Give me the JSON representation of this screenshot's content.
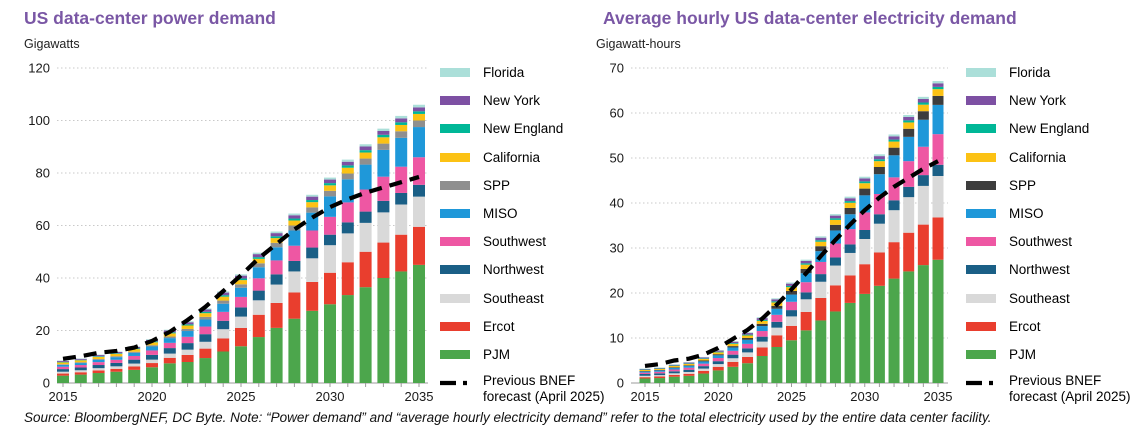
{
  "page": {
    "source_note": "Source: BloombergNEF, DC Byte. Note: “Power demand” and “average hourly electricity demand” refer to the total electricity used by the entire data center facility."
  },
  "styles": {
    "title_color": "#7a57a5",
    "axis_text_color": "#1a1a1a",
    "grid_color": "#c9c9c9",
    "baseline_color": "#9b9b9b",
    "forecast_color": "#000000"
  },
  "chart_data": [
    {
      "type": "bar",
      "stacked": true,
      "title": "US data-center power demand",
      "unit_label": "Gigawatts",
      "ylabel": "Gigawatts",
      "ylim": [
        0,
        120
      ],
      "ystep": 20,
      "grid": "dotted horizontal",
      "legend_position": "right",
      "years": [
        2015,
        2016,
        2017,
        2018,
        2019,
        2020,
        2021,
        2022,
        2023,
        2024,
        2025,
        2026,
        2027,
        2028,
        2029,
        2030,
        2031,
        2032,
        2033,
        2034,
        2035
      ],
      "xtick_labels": [
        2015,
        2020,
        2025,
        2030,
        2035
      ],
      "stack_note": "series listed top-of-stack first (legend order); PJM is bottom of stack; values are estimates read from chart",
      "series": [
        {
          "name": "Florida",
          "color": "#abdfd9",
          "values": [
            0.1,
            0.1,
            0.15,
            0.15,
            0.2,
            0.25,
            0.3,
            0.35,
            0.4,
            0.45,
            0.5,
            0.55,
            0.6,
            0.65,
            0.7,
            0.75,
            0.8,
            0.85,
            0.9,
            0.95,
            1.0
          ]
        },
        {
          "name": "New York",
          "color": "#7d50a3",
          "values": [
            0.4,
            0.4,
            0.45,
            0.5,
            0.55,
            0.6,
            0.7,
            0.8,
            0.9,
            1.0,
            1.1,
            1.15,
            1.2,
            1.25,
            1.3,
            1.35,
            1.4,
            1.4,
            1.45,
            1.5,
            1.5
          ]
        },
        {
          "name": "New England",
          "color": "#00b797",
          "values": [
            0.2,
            0.2,
            0.25,
            0.25,
            0.3,
            0.35,
            0.4,
            0.45,
            0.5,
            0.55,
            0.6,
            0.65,
            0.7,
            0.75,
            0.8,
            0.85,
            0.9,
            0.9,
            0.95,
            1.0,
            1.0
          ]
        },
        {
          "name": "California",
          "color": "#fcc214",
          "values": [
            0.7,
            0.75,
            0.8,
            0.9,
            1.0,
            1.1,
            1.2,
            1.3,
            1.4,
            1.5,
            1.6,
            1.7,
            1.8,
            1.9,
            2.0,
            2.1,
            2.2,
            2.3,
            2.4,
            2.4,
            2.5
          ]
        },
        {
          "name": "SPP",
          "color": "#8f8f8f",
          "values": [
            0.25,
            0.3,
            0.3,
            0.35,
            0.4,
            0.5,
            0.6,
            0.8,
            1.0,
            1.2,
            1.3,
            1.5,
            1.7,
            1.9,
            2.0,
            2.1,
            2.2,
            2.3,
            2.4,
            2.5,
            2.5
          ]
        },
        {
          "name": "MISO",
          "color": "#1f98d9",
          "values": [
            0.7,
            0.75,
            0.9,
            1.0,
            1.2,
            1.5,
            1.8,
            2.2,
            2.7,
            3.1,
            3.5,
            4.2,
            5.0,
            5.8,
            6.8,
            7.8,
            8.8,
            9.5,
            10.2,
            11.0,
            11.5
          ]
        },
        {
          "name": "Southwest",
          "color": "#ee57a3",
          "values": [
            0.9,
            0.95,
            1.1,
            1.2,
            1.4,
            1.7,
            2.0,
            2.4,
            2.9,
            3.4,
            4.0,
            4.7,
            5.3,
            5.8,
            6.5,
            6.8,
            7.6,
            8.4,
            9.2,
            10.0,
            10.5
          ]
        },
        {
          "name": "Northwest",
          "color": "#1a5f86",
          "values": [
            1.0,
            1.05,
            1.2,
            1.3,
            1.5,
            1.8,
            2.1,
            2.5,
            2.9,
            3.2,
            3.5,
            3.7,
            3.9,
            4.0,
            4.1,
            4.0,
            4.2,
            4.3,
            4.4,
            4.4,
            4.5
          ]
        },
        {
          "name": "Southeast",
          "color": "#d9d9d9",
          "values": [
            0.7,
            0.75,
            0.85,
            0.95,
            1.1,
            1.3,
            1.6,
            2.0,
            2.6,
            3.5,
            4.3,
            5.5,
            7.0,
            8.0,
            9.0,
            10.5,
            11.0,
            11.0,
            11.5,
            11.5,
            11.5
          ]
        },
        {
          "name": "Ercot",
          "color": "#e93e2e",
          "values": [
            0.8,
            0.9,
            1.0,
            1.1,
            1.3,
            1.6,
            2.1,
            2.7,
            3.6,
            5.0,
            7.0,
            8.5,
            9.5,
            10.0,
            11.0,
            12.0,
            12.5,
            13.5,
            13.5,
            14.0,
            14.5
          ]
        },
        {
          "name": "PJM",
          "color": "#4ca64c",
          "values": [
            2.8,
            3.2,
            3.8,
            4.3,
            5.0,
            6.0,
            7.5,
            8.0,
            9.5,
            12.0,
            14.0,
            17.5,
            21.0,
            24.5,
            27.5,
            30.0,
            33.5,
            36.5,
            40.0,
            42.5,
            45.0
          ]
        }
      ],
      "forecast": {
        "label_line1": "Previous BNEF",
        "label_line2": "forecast (April 2025)",
        "color": "#000000",
        "style": "dashed",
        "values": [
          9.2,
          10.2,
          11.5,
          12.2,
          13.5,
          16.0,
          19.5,
          24.0,
          29.0,
          35.0,
          41.0,
          47.5,
          53.0,
          58.5,
          63.0,
          67.0,
          70.0,
          72.5,
          74.5,
          76.5,
          78.5
        ]
      }
    },
    {
      "type": "bar",
      "stacked": true,
      "title": "Average hourly US data-center electricity demand",
      "unit_label": "Gigawatt-hours",
      "ylabel": "Gigawatt-hours",
      "ylim": [
        0,
        70
      ],
      "ystep": 10,
      "grid": "dotted horizontal",
      "legend_position": "right",
      "years": [
        2015,
        2016,
        2017,
        2018,
        2019,
        2020,
        2021,
        2022,
        2023,
        2024,
        2025,
        2026,
        2027,
        2028,
        2029,
        2030,
        2031,
        2032,
        2033,
        2034,
        2035
      ],
      "xtick_labels": [
        2015,
        2020,
        2025,
        2030,
        2035
      ],
      "stack_note": "series listed top-of-stack first (legend order); PJM is bottom of stack; values are estimates read from chart",
      "series": [
        {
          "name": "Florida",
          "color": "#abdfd9",
          "values": [
            0.05,
            0.05,
            0.07,
            0.08,
            0.1,
            0.12,
            0.15,
            0.17,
            0.2,
            0.22,
            0.25,
            0.28,
            0.3,
            0.33,
            0.35,
            0.38,
            0.4,
            0.42,
            0.45,
            0.48,
            0.5
          ]
        },
        {
          "name": "New York",
          "color": "#7d50a3",
          "values": [
            0.15,
            0.15,
            0.17,
            0.2,
            0.22,
            0.25,
            0.3,
            0.35,
            0.4,
            0.45,
            0.5,
            0.53,
            0.56,
            0.6,
            0.63,
            0.66,
            0.7,
            0.72,
            0.75,
            0.78,
            0.8
          ]
        },
        {
          "name": "New England",
          "color": "#00b797",
          "values": [
            0.08,
            0.08,
            0.1,
            0.1,
            0.12,
            0.15,
            0.17,
            0.2,
            0.22,
            0.25,
            0.28,
            0.3,
            0.33,
            0.35,
            0.38,
            0.4,
            0.42,
            0.44,
            0.46,
            0.48,
            0.5
          ]
        },
        {
          "name": "California",
          "color": "#fcc214",
          "values": [
            0.25,
            0.25,
            0.3,
            0.3,
            0.35,
            0.4,
            0.5,
            0.55,
            0.65,
            0.75,
            0.85,
            0.95,
            1.0,
            1.1,
            1.15,
            1.2,
            1.3,
            1.35,
            1.4,
            1.45,
            1.5
          ]
        },
        {
          "name": "SPP",
          "color": "#3d3d3d",
          "values": [
            0.1,
            0.1,
            0.15,
            0.15,
            0.2,
            0.25,
            0.3,
            0.4,
            0.5,
            0.65,
            0.8,
            0.95,
            1.1,
            1.25,
            1.4,
            1.5,
            1.6,
            1.7,
            1.8,
            1.9,
            2.0
          ]
        },
        {
          "name": "MISO",
          "color": "#1f98d9",
          "values": [
            0.25,
            0.3,
            0.35,
            0.4,
            0.5,
            0.6,
            0.75,
            0.9,
            1.1,
            1.35,
            1.6,
            2.0,
            2.4,
            2.9,
            3.3,
            3.8,
            4.4,
            4.9,
            5.4,
            6.0,
            6.5
          ]
        },
        {
          "name": "Southwest",
          "color": "#ee57a3",
          "values": [
            0.3,
            0.35,
            0.4,
            0.45,
            0.55,
            0.7,
            0.85,
            1.0,
            1.25,
            1.55,
            1.85,
            2.25,
            2.7,
            3.1,
            3.4,
            3.9,
            4.5,
            5.1,
            5.7,
            6.3,
            6.8
          ]
        },
        {
          "name": "Northwest",
          "color": "#1a5f86",
          "values": [
            0.4,
            0.4,
            0.45,
            0.5,
            0.55,
            0.65,
            0.8,
            0.9,
            1.1,
            1.3,
            1.4,
            1.55,
            1.7,
            1.8,
            1.9,
            2.0,
            2.1,
            2.2,
            2.3,
            2.4,
            2.5
          ]
        },
        {
          "name": "Southeast",
          "color": "#d9d9d9",
          "values": [
            0.3,
            0.3,
            0.35,
            0.4,
            0.5,
            0.6,
            0.8,
            1.0,
            1.3,
            1.7,
            2.1,
            2.8,
            3.6,
            4.4,
            5.0,
            5.6,
            6.4,
            7.1,
            7.9,
            8.6,
            9.2
          ]
        },
        {
          "name": "Ercot",
          "color": "#e93e2e",
          "values": [
            0.3,
            0.35,
            0.4,
            0.45,
            0.6,
            0.8,
            1.1,
            1.4,
            1.9,
            2.6,
            3.2,
            4.1,
            5.0,
            5.8,
            6.1,
            6.6,
            7.4,
            8.1,
            8.6,
            9.0,
            9.4
          ]
        },
        {
          "name": "PJM",
          "color": "#4ca64c",
          "values": [
            1.0,
            1.1,
            1.4,
            1.6,
            2.1,
            2.8,
            3.6,
            4.4,
            6.0,
            8.0,
            9.5,
            11.7,
            13.9,
            15.9,
            17.8,
            19.8,
            21.6,
            23.2,
            24.8,
            26.2,
            27.4
          ]
        }
      ],
      "forecast": {
        "label_line1": "Previous BNEF",
        "label_line2": "forecast (April 2025)",
        "color": "#000000",
        "style": "dashed",
        "values": [
          3.8,
          4.2,
          5.0,
          5.4,
          6.3,
          7.8,
          9.8,
          11.8,
          14.3,
          17.4,
          20.8,
          24.4,
          28.2,
          31.8,
          35.2,
          38.4,
          41.2,
          43.6,
          45.6,
          47.6,
          49.3
        ]
      }
    }
  ]
}
